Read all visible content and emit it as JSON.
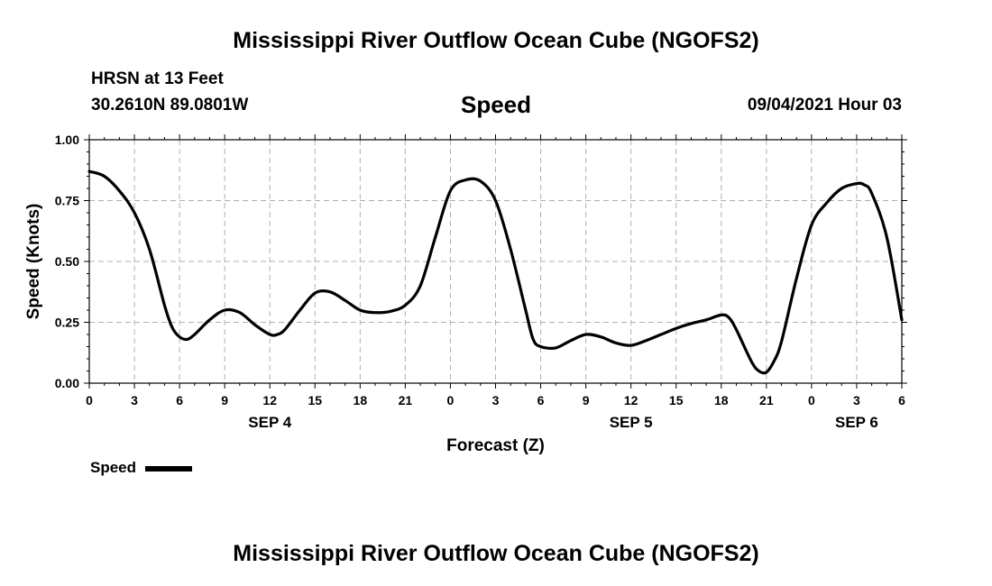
{
  "page": {
    "title_top": "Mississippi River Outflow Ocean Cube (NGOFS2)",
    "title_bottom": "Mississippi River Outflow Ocean Cube (NGOFS2)",
    "station_line": "HRSN at 13 Feet",
    "coords_line": "30.2610N  89.0801W",
    "datetime_line": "09/04/2021 Hour 03",
    "legend_label": "Speed"
  },
  "colors": {
    "line": "#000000",
    "grid": "#b0b0b0",
    "axis": "#000000"
  },
  "chart_data": {
    "type": "line",
    "title": "Speed",
    "xlabel": "Forecast (Z)",
    "ylabel": "Speed (Knots)",
    "xlim": [
      0,
      54
    ],
    "ylim": [
      0,
      1
    ],
    "yticks": [
      "0.00",
      "0.25",
      "0.50",
      "0.75",
      "1.00"
    ],
    "ytick_values": [
      0,
      0.25,
      0.5,
      0.75,
      1.0
    ],
    "xticks": [
      "0",
      "3",
      "6",
      "9",
      "12",
      "15",
      "18",
      "21",
      "0",
      "3",
      "6",
      "9",
      "12",
      "15",
      "18",
      "21",
      "0",
      "3",
      "6"
    ],
    "xtick_values": [
      0,
      3,
      6,
      9,
      12,
      15,
      18,
      21,
      24,
      27,
      30,
      33,
      36,
      39,
      42,
      45,
      48,
      51,
      54
    ],
    "day_labels": [
      {
        "label": "SEP 4",
        "x": 12
      },
      {
        "label": "SEP 5",
        "x": 36
      },
      {
        "label": "SEP 6",
        "x": 51
      }
    ],
    "grid": true,
    "legend": "bottom-left",
    "series": [
      {
        "name": "Speed",
        "x": [
          0,
          1,
          2,
          3,
          4,
          5,
          5.5,
          6,
          6.5,
          7,
          8,
          9,
          10,
          11,
          12,
          12.5,
          13,
          14,
          15,
          16,
          17,
          18,
          19,
          20,
          21,
          22,
          23,
          24,
          25,
          26,
          27,
          28,
          29,
          29.5,
          30,
          31,
          32,
          33,
          34,
          35,
          36,
          37,
          38,
          39,
          40,
          41,
          42,
          42.5,
          43,
          44,
          44.5,
          45,
          45.5,
          46,
          47,
          48,
          49,
          50,
          51,
          51.5,
          52,
          53,
          54
        ],
        "values": [
          0.87,
          0.85,
          0.79,
          0.7,
          0.55,
          0.32,
          0.23,
          0.19,
          0.18,
          0.2,
          0.26,
          0.3,
          0.29,
          0.24,
          0.2,
          0.2,
          0.22,
          0.3,
          0.37,
          0.375,
          0.34,
          0.3,
          0.29,
          0.295,
          0.32,
          0.4,
          0.6,
          0.79,
          0.835,
          0.83,
          0.75,
          0.55,
          0.3,
          0.18,
          0.15,
          0.145,
          0.175,
          0.2,
          0.19,
          0.165,
          0.155,
          0.175,
          0.2,
          0.225,
          0.245,
          0.26,
          0.28,
          0.27,
          0.22,
          0.09,
          0.05,
          0.045,
          0.09,
          0.17,
          0.43,
          0.65,
          0.74,
          0.8,
          0.82,
          0.815,
          0.78,
          0.6,
          0.26
        ]
      }
    ]
  }
}
